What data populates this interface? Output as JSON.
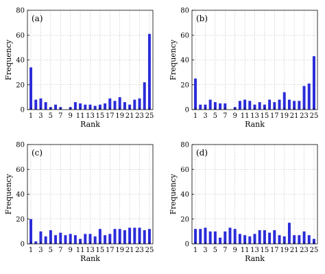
{
  "chart_data": [
    {
      "type": "bar",
      "panel_label": "(a)",
      "xlabel": "Rank",
      "ylabel": "Frequency",
      "ylim": [
        0,
        80
      ],
      "yticks": [
        0,
        20,
        40,
        60,
        80
      ],
      "xticks": [
        1,
        3,
        5,
        7,
        9,
        11,
        13,
        15,
        17,
        19,
        21,
        23,
        25
      ],
      "grid": true,
      "color": "#2b2bd9",
      "categories": [
        1,
        2,
        3,
        4,
        5,
        6,
        7,
        8,
        9,
        10,
        11,
        12,
        13,
        14,
        15,
        16,
        17,
        18,
        19,
        20,
        21,
        22,
        23,
        24,
        25
      ],
      "values": [
        34,
        8,
        9,
        6,
        2,
        4,
        2,
        0,
        2,
        6,
        5,
        4,
        4,
        3,
        4,
        5,
        9,
        7,
        10,
        6,
        4,
        8,
        9,
        22,
        61
      ]
    },
    {
      "type": "bar",
      "panel_label": "(b)",
      "xlabel": "Rank",
      "ylabel": "Frequency",
      "ylim": [
        0,
        80
      ],
      "yticks": [
        0,
        20,
        40,
        60,
        80
      ],
      "xticks": [
        1,
        3,
        5,
        7,
        9,
        11,
        13,
        15,
        17,
        19,
        21,
        23,
        25
      ],
      "grid": true,
      "color": "#2b2bd9",
      "categories": [
        1,
        2,
        3,
        4,
        5,
        6,
        7,
        8,
        9,
        10,
        11,
        12,
        13,
        14,
        15,
        16,
        17,
        18,
        19,
        20,
        21,
        22,
        23,
        24,
        25
      ],
      "values": [
        25,
        4,
        4,
        8,
        6,
        5,
        5,
        0,
        2,
        7,
        8,
        7,
        4,
        6,
        4,
        8,
        6,
        8,
        14,
        8,
        7,
        7,
        19,
        21,
        43
      ]
    },
    {
      "type": "bar",
      "panel_label": "(c)",
      "xlabel": "Rank",
      "ylabel": "Frequency",
      "ylim": [
        0,
        80
      ],
      "yticks": [
        0,
        20,
        40,
        60,
        80
      ],
      "xticks": [
        1,
        3,
        5,
        7,
        9,
        11,
        13,
        15,
        17,
        19,
        21,
        23,
        25
      ],
      "grid": true,
      "color": "#2b2bd9",
      "categories": [
        1,
        2,
        3,
        4,
        5,
        6,
        7,
        8,
        9,
        10,
        11,
        12,
        13,
        14,
        15,
        16,
        17,
        18,
        19,
        20,
        21,
        22,
        23,
        24,
        25
      ],
      "values": [
        20,
        2,
        10,
        6,
        11,
        7,
        9,
        7,
        8,
        7,
        4,
        8,
        8,
        6,
        12,
        7,
        8,
        12,
        12,
        11,
        13,
        13,
        13,
        11,
        12
      ]
    },
    {
      "type": "bar",
      "panel_label": "(d)",
      "xlabel": "Rank",
      "ylabel": "Frequency",
      "ylim": [
        0,
        80
      ],
      "yticks": [
        0,
        20,
        40,
        60,
        80
      ],
      "xticks": [
        1,
        3,
        5,
        7,
        9,
        11,
        13,
        15,
        17,
        19,
        21,
        23,
        25
      ],
      "grid": true,
      "color": "#2b2bd9",
      "categories": [
        1,
        2,
        3,
        4,
        5,
        6,
        7,
        8,
        9,
        10,
        11,
        12,
        13,
        14,
        15,
        16,
        17,
        18,
        19,
        20,
        21,
        22,
        23,
        24,
        25
      ],
      "values": [
        12,
        12,
        13,
        10,
        10,
        5,
        10,
        13,
        12,
        8,
        7,
        6,
        8,
        11,
        11,
        9,
        11,
        7,
        6,
        17,
        7,
        7,
        10,
        7,
        4
      ]
    }
  ]
}
